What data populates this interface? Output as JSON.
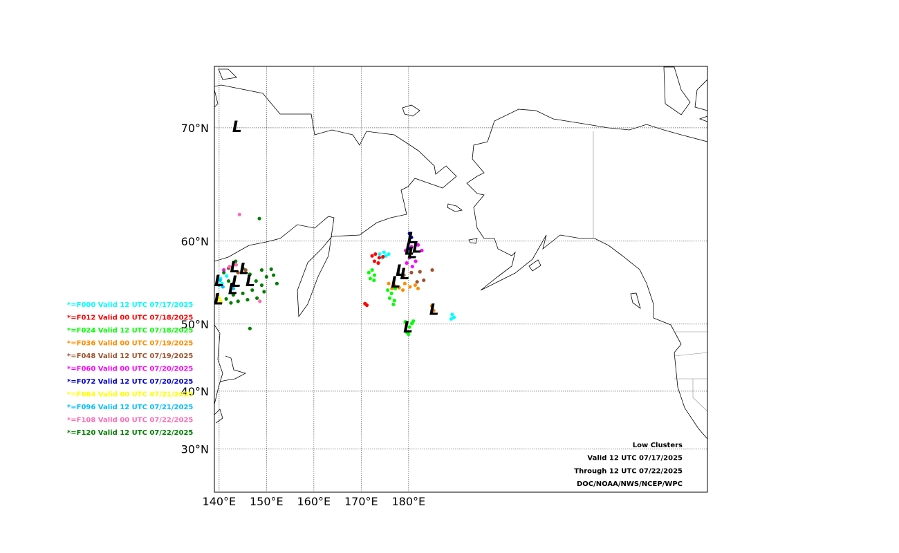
{
  "map": {
    "type": "map",
    "projection": "mercator",
    "lon_range": [
      139,
      243.1
    ],
    "lat_range": [
      21.8,
      74.0
    ],
    "lon_ticks": [
      {
        "value": 140,
        "label": "140°E"
      },
      {
        "value": 150,
        "label": "150°E"
      },
      {
        "value": 160,
        "label": "160°E"
      },
      {
        "value": 170,
        "label": "170°E"
      },
      {
        "value": 180,
        "label": "180°E"
      }
    ],
    "lat_ticks": [
      {
        "value": 70,
        "label": "70°N"
      },
      {
        "value": 60,
        "label": "60°N"
      },
      {
        "value": 50,
        "label": "50°N"
      },
      {
        "value": 40,
        "label": "40°N"
      },
      {
        "value": 30,
        "label": "30°N"
      }
    ],
    "grid": true,
    "low_symbol": "L",
    "series": [
      {
        "name": "*=F000 Valid 12 UTC 07/17/2025",
        "color": "#00ffff",
        "points": [
          [
            173.9,
            58.6
          ],
          [
            174.8,
            58.8
          ],
          [
            175.8,
            58.6
          ],
          [
            174.4,
            58.2
          ],
          [
            175.2,
            58.4
          ],
          [
            140.3,
            55.8
          ],
          [
            140.6,
            55.2
          ],
          [
            141.6,
            56.1
          ],
          [
            189.2,
            51.3
          ],
          [
            189.6,
            50.9
          ],
          [
            189.0,
            50.7
          ]
        ]
      },
      {
        "name": "*=F012 Valid 00 UTC 07/18/2025",
        "color": "#ff0000",
        "points": [
          [
            172.3,
            58.4
          ],
          [
            173.0,
            58.6
          ],
          [
            173.8,
            58.2
          ],
          [
            174.6,
            58.3
          ],
          [
            172.8,
            57.8
          ],
          [
            173.6,
            57.6
          ],
          [
            170.8,
            52.7
          ],
          [
            171.2,
            52.5
          ]
        ]
      },
      {
        "name": "*=F024 Valid 12 UTC 07/18/2025",
        "color": "#00ff00",
        "points": [
          [
            171.6,
            56.5
          ],
          [
            172.3,
            56.8
          ],
          [
            172.8,
            56.2
          ],
          [
            171.9,
            55.8
          ],
          [
            172.7,
            55.6
          ],
          [
            175.6,
            54.4
          ],
          [
            176.4,
            54.0
          ],
          [
            177.2,
            54.6
          ],
          [
            176.0,
            53.4
          ],
          [
            177.0,
            53.1
          ],
          [
            176.8,
            52.6
          ],
          [
            179.3,
            50.3
          ],
          [
            180.2,
            49.6
          ],
          [
            180.7,
            50.1
          ],
          [
            179.6,
            48.9
          ],
          [
            181.0,
            50.4
          ],
          [
            180.0,
            48.6
          ]
        ]
      },
      {
        "name": "*=F036 Valid 00 UTC 07/19/2025",
        "color": "#ff8c00",
        "points": [
          [
            175.8,
            55.2
          ],
          [
            177.0,
            55.0
          ],
          [
            178.0,
            54.7
          ],
          [
            179.2,
            55.2
          ],
          [
            180.3,
            54.8
          ],
          [
            181.4,
            55.0
          ],
          [
            182.0,
            54.6
          ],
          [
            178.8,
            54.4
          ],
          [
            176.5,
            54.6
          ],
          [
            184.9,
            52.4
          ],
          [
            185.3,
            51.8
          ],
          [
            139.6,
            53.8
          ]
        ]
      },
      {
        "name": "*=F048 Valid 12 UTC 07/19/2025",
        "color": "#a0522d",
        "points": [
          [
            177.8,
            56.4
          ],
          [
            179.0,
            56.2
          ],
          [
            180.6,
            56.5
          ],
          [
            182.4,
            56.6
          ],
          [
            185.0,
            56.8
          ],
          [
            181.8,
            55.4
          ],
          [
            183.2,
            55.6
          ],
          [
            142.0,
            57.0
          ],
          [
            144.0,
            56.5
          ],
          [
            145.6,
            56.8
          ]
        ]
      },
      {
        "name": "*=F060 Valid 00 UTC 07/20/2025",
        "color": "#ff00ff",
        "points": [
          [
            179.4,
            59.0
          ],
          [
            180.6,
            59.4
          ],
          [
            182.0,
            59.6
          ],
          [
            182.8,
            59.0
          ],
          [
            180.2,
            58.2
          ],
          [
            181.5,
            57.8
          ],
          [
            179.6,
            57.6
          ],
          [
            180.8,
            57.2
          ],
          [
            141.0,
            56.8
          ]
        ]
      },
      {
        "name": "*=F072 Valid 12 UTC 07/20/2025",
        "color": "#0000cd",
        "points": [
          [
            180.2,
            60.8
          ],
          [
            180.6,
            60.4
          ],
          [
            180.0,
            59.2
          ]
        ]
      },
      {
        "name": "*=F084 Valid 00 UTC 07/21/2025",
        "color": "#ffff00",
        "points": [
          [
            140.0,
            53.4
          ],
          [
            140.3,
            53.0
          ]
        ]
      },
      {
        "name": "*=F096 Valid 12 UTC 07/21/2025",
        "color": "#00bfff",
        "points": [
          [
            140.2,
            55.6
          ],
          [
            140.0,
            55.0
          ],
          [
            140.8,
            54.8
          ],
          [
            143.0,
            54.6
          ]
        ]
      },
      {
        "name": "*=F108 Valid 00 UTC 07/22/2025",
        "color": "#ff69b4",
        "points": [
          [
            142.2,
            57.2
          ],
          [
            143.6,
            57.4
          ],
          [
            148.6,
            53.0
          ],
          [
            144.3,
            62.7
          ]
        ]
      },
      {
        "name": "*=F120 Valid 12 UTC 07/22/2025",
        "color": "#008000",
        "points": [
          [
            141.0,
            56.5
          ],
          [
            142.0,
            55.5
          ],
          [
            143.5,
            57.8
          ],
          [
            145.0,
            57.0
          ],
          [
            146.5,
            56.3
          ],
          [
            147.8,
            55.5
          ],
          [
            149.0,
            56.8
          ],
          [
            150.0,
            56.0
          ],
          [
            151.0,
            56.9
          ],
          [
            151.5,
            56.2
          ],
          [
            152.2,
            55.2
          ],
          [
            149.0,
            55.0
          ],
          [
            147.0,
            54.4
          ],
          [
            145.0,
            54.0
          ],
          [
            143.0,
            53.8
          ],
          [
            141.5,
            53.3
          ],
          [
            144.0,
            53.0
          ],
          [
            146.0,
            53.2
          ],
          [
            148.0,
            53.4
          ],
          [
            149.5,
            54.2
          ],
          [
            142.5,
            52.8
          ],
          [
            148.5,
            62.3
          ],
          [
            146.5,
            49.4
          ]
        ]
      }
    ],
    "lows": [
      [
        143.8,
        70.0
      ],
      [
        180.7,
        60.2
      ],
      [
        180.2,
        59.0
      ],
      [
        181.8,
        59.2
      ],
      [
        180.8,
        58.6
      ],
      [
        178.3,
        56.6
      ],
      [
        179.2,
        56.2
      ],
      [
        177.3,
        55.2
      ],
      [
        185.4,
        51.8
      ],
      [
        179.9,
        49.4
      ],
      [
        140.0,
        55.4
      ],
      [
        139.9,
        53.1
      ],
      [
        143.3,
        57.0
      ],
      [
        145.3,
        56.8
      ],
      [
        143.6,
        55.3
      ],
      [
        146.6,
        55.4
      ],
      [
        142.9,
        54.4
      ]
    ],
    "info": [
      "Low Clusters",
      "Valid 12 UTC 07/17/2025",
      "Through 12 UTC 07/22/2025",
      "DOC/NOAA/NWS/NCEP/WPC"
    ]
  }
}
